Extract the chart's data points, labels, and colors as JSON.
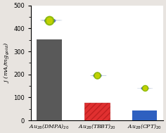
{
  "categories": [
    "Au$_{28}$(DMPA)$_{20}$",
    "Au$_{28}$(TBBT)$_{20}$",
    "Au$_{28}$(CPT)$_{20}$"
  ],
  "values": [
    352,
    78,
    42
  ],
  "bar_colors": [
    "#595959",
    "#e03030",
    "#2e60c0"
  ],
  "ylabel": "j (mA/mg$_{gold}$)",
  "ylim": [
    0,
    500
  ],
  "yticks": [
    0,
    100,
    200,
    300,
    400,
    500
  ],
  "plot_bg": "#ffffff",
  "figure_bg": "#e8e4e0",
  "bar_width": 0.52,
  "bar_hatch": [
    "",
    "////",
    ""
  ],
  "hatch_colors": [
    "none",
    "#c02020",
    "none"
  ]
}
